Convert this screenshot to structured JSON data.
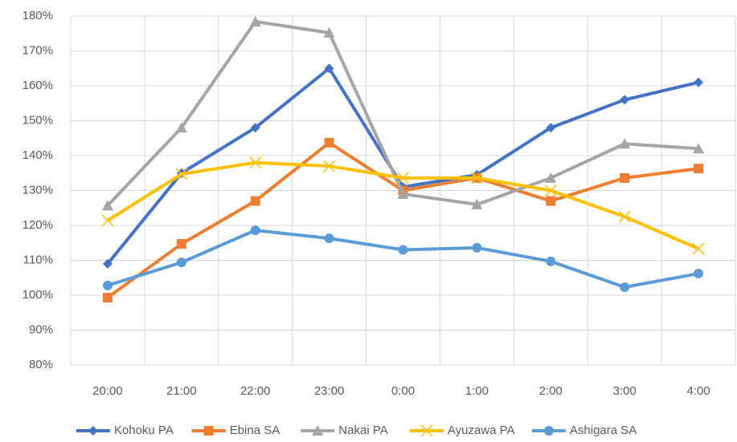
{
  "chart_data": {
    "type": "line",
    "categories": [
      "20:00",
      "21:00",
      "22:00",
      "23:00",
      "0:00",
      "1:00",
      "2:00",
      "3:00",
      "4:00"
    ],
    "series": [
      {
        "name": "Kohoku PA",
        "color": "#4472c4",
        "marker": "diamond",
        "values": [
          109,
          135,
          148,
          165,
          131,
          134.5,
          148,
          156,
          161
        ]
      },
      {
        "name": "Ebina SA",
        "color": "#ed7d31",
        "marker": "square",
        "values": [
          99.3,
          114.7,
          127,
          143.7,
          130,
          133.6,
          127,
          133.6,
          136.3
        ]
      },
      {
        "name": "Nakai PA",
        "color": "#a5a5a5",
        "marker": "triangle",
        "values": [
          125.7,
          148,
          178.4,
          175.2,
          129,
          126,
          133.6,
          143.4,
          142
        ]
      },
      {
        "name": "Ayuzawa PA",
        "color": "#ffc000",
        "marker": "x",
        "values": [
          121.4,
          134.7,
          138,
          137,
          133.6,
          133.6,
          130,
          122.5,
          113.3
        ]
      },
      {
        "name": "Ashigara SA",
        "color": "#5b9bd5",
        "marker": "circle",
        "values": [
          102.8,
          109.4,
          118.6,
          116.3,
          113,
          113.6,
          109.7,
          102.3,
          106.2
        ]
      }
    ],
    "ylim": [
      80,
      180
    ],
    "yticks": [
      {
        "value": 80,
        "label": "80%"
      },
      {
        "value": 90,
        "label": "90%"
      },
      {
        "value": 100,
        "label": "100%"
      },
      {
        "value": 110,
        "label": "110%"
      },
      {
        "value": 120,
        "label": "120%"
      },
      {
        "value": 130,
        "label": "130%"
      },
      {
        "value": 140,
        "label": "140%"
      },
      {
        "value": 150,
        "label": "150%"
      },
      {
        "value": 160,
        "label": "160%"
      },
      {
        "value": 170,
        "label": "170%"
      },
      {
        "value": 180,
        "label": "180%"
      }
    ],
    "grid": true,
    "legend": "bottom"
  }
}
